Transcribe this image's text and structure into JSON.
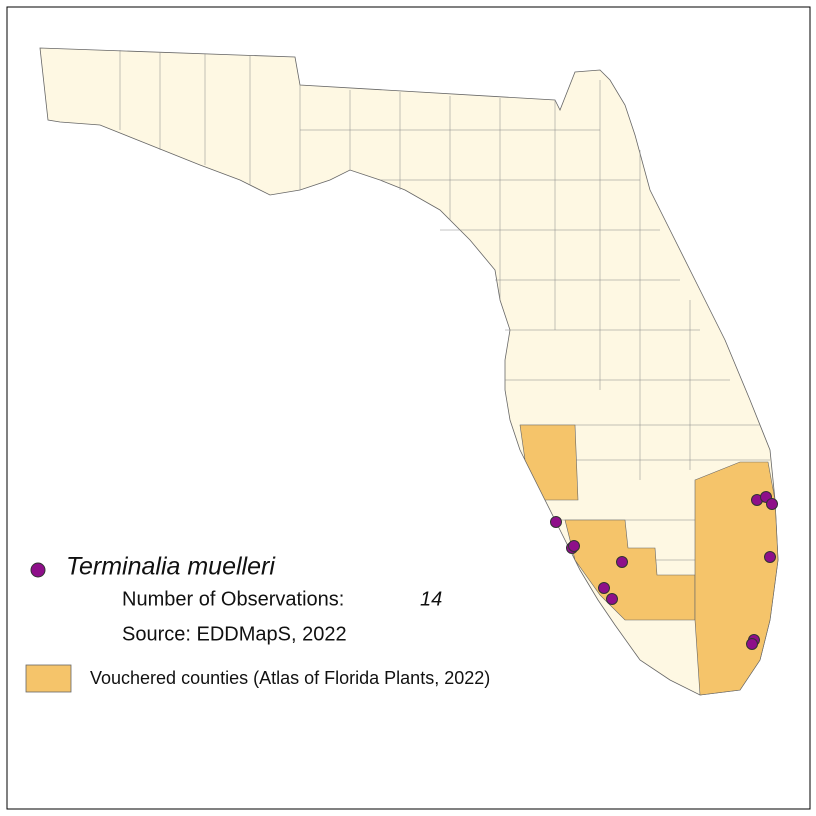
{
  "legend": {
    "species": "Terminalia muelleri",
    "observations_label": "Number of Observations:",
    "observations_value": 14,
    "source": "Source: EDDMapS, 2022",
    "vouchered": "Vouchered counties (Atlas of Florida Plants, 2022)"
  }
}
